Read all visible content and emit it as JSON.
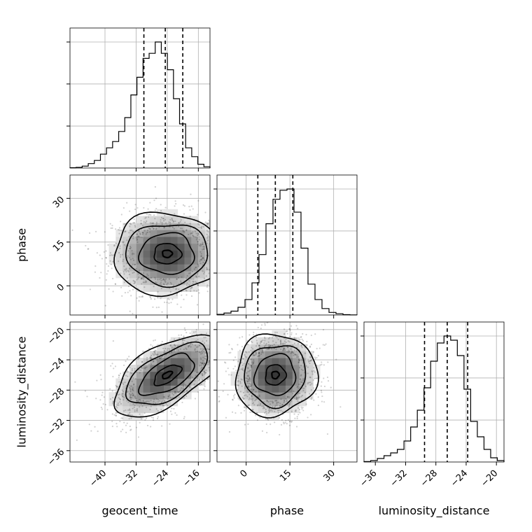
{
  "chart_data": {
    "type": "corner",
    "grid": true,
    "parameters": [
      {
        "name": "geocent_time",
        "range": [
          -49,
          -13
        ],
        "ticks": [
          -40,
          -32,
          -24,
          -16
        ],
        "tick_labels": [
          "−40",
          "−32",
          "−24",
          "−16"
        ],
        "quantiles": [
          -30,
          -24.5,
          -20
        ],
        "hist_edges_step": 1.8,
        "hist_counts": [
          0.2,
          0.5,
          1.5,
          3.5,
          6,
          11,
          16,
          21,
          29,
          40,
          58,
          72,
          87,
          91,
          100,
          91,
          78,
          55,
          35,
          16,
          9,
          3,
          1
        ]
      },
      {
        "name": "phase",
        "range": [
          -10,
          38
        ],
        "ticks": [
          0,
          15,
          30
        ],
        "tick_labels": [
          "0",
          "15",
          "30"
        ],
        "quantiles": [
          4,
          10,
          16
        ],
        "hist_edges_step": 2.4,
        "hist_counts": [
          0.5,
          1.5,
          3,
          6,
          12,
          25,
          47,
          71,
          90,
          97,
          98,
          80,
          52,
          24,
          12,
          5,
          2,
          1,
          0.3,
          0.1
        ]
      },
      {
        "name": "luminosity_distance",
        "range": [
          -37.5,
          -19
        ],
        "ticks": [
          -36,
          -32,
          -28,
          -24,
          -20
        ],
        "tick_labels": [
          "−36",
          "−32",
          "−28",
          "−24",
          "−20"
        ],
        "quantiles": [
          -29.5,
          -26.5,
          -23.8
        ],
        "hist_edges_step": 0.93,
        "hist_counts": [
          0.3,
          1,
          2.5,
          4.5,
          6.5,
          9,
          15,
          25,
          37,
          53,
          72,
          85,
          90,
          87,
          76,
          52,
          29,
          18,
          9,
          3,
          1
        ]
      }
    ],
    "scatter_panels": [
      {
        "x_param": "geocent_time",
        "y_param": "phase",
        "mean": [
          -24,
          11
        ],
        "std": [
          7,
          7
        ],
        "corr": 0.0
      },
      {
        "x_param": "geocent_time",
        "y_param": "luminosity_distance",
        "mean": [
          -24,
          -26
        ],
        "std": [
          7,
          2.7
        ],
        "corr": 0.6
      },
      {
        "x_param": "phase",
        "y_param": "luminosity_distance",
        "mean": [
          10,
          -26
        ],
        "std": [
          7,
          2.7
        ],
        "corr": 0.05
      }
    ]
  }
}
